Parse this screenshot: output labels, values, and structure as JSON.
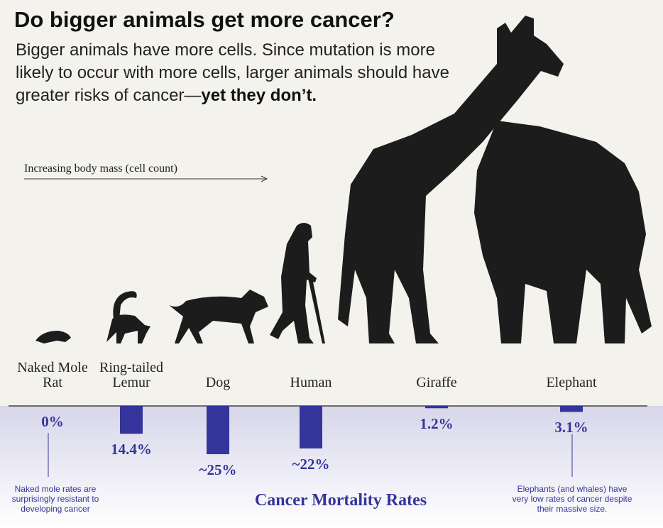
{
  "chart_data": {
    "type": "bar",
    "title": "Do bigger animals get more cancer?",
    "subtitle": "Bigger animals have more cells. Since mutation is more likely to occur with more cells, larger animals should have greater risks of cancer—",
    "subtitle_emphasis": "yet they don’t.",
    "arrow_label": "Increasing body mass (cell count)",
    "axis_title": "Cancer Mortality Rates",
    "categories": [
      "Naked Mole Rat",
      "Ring-tailed Lemur",
      "Dog",
      "Human",
      "Giraffe",
      "Elephant"
    ],
    "values": [
      0,
      14.4,
      25,
      22,
      1.2,
      3.1
    ],
    "value_labels": [
      "0%",
      "14.4%",
      "~25%",
      "~22%",
      "1.2%",
      "3.1%"
    ],
    "color": "#34349a",
    "annotations": [
      "Naked mole rates are surprisingly resistant to developing cancer",
      "Elephants (and whales) have very low rates of cancer despite their massive size."
    ]
  }
}
